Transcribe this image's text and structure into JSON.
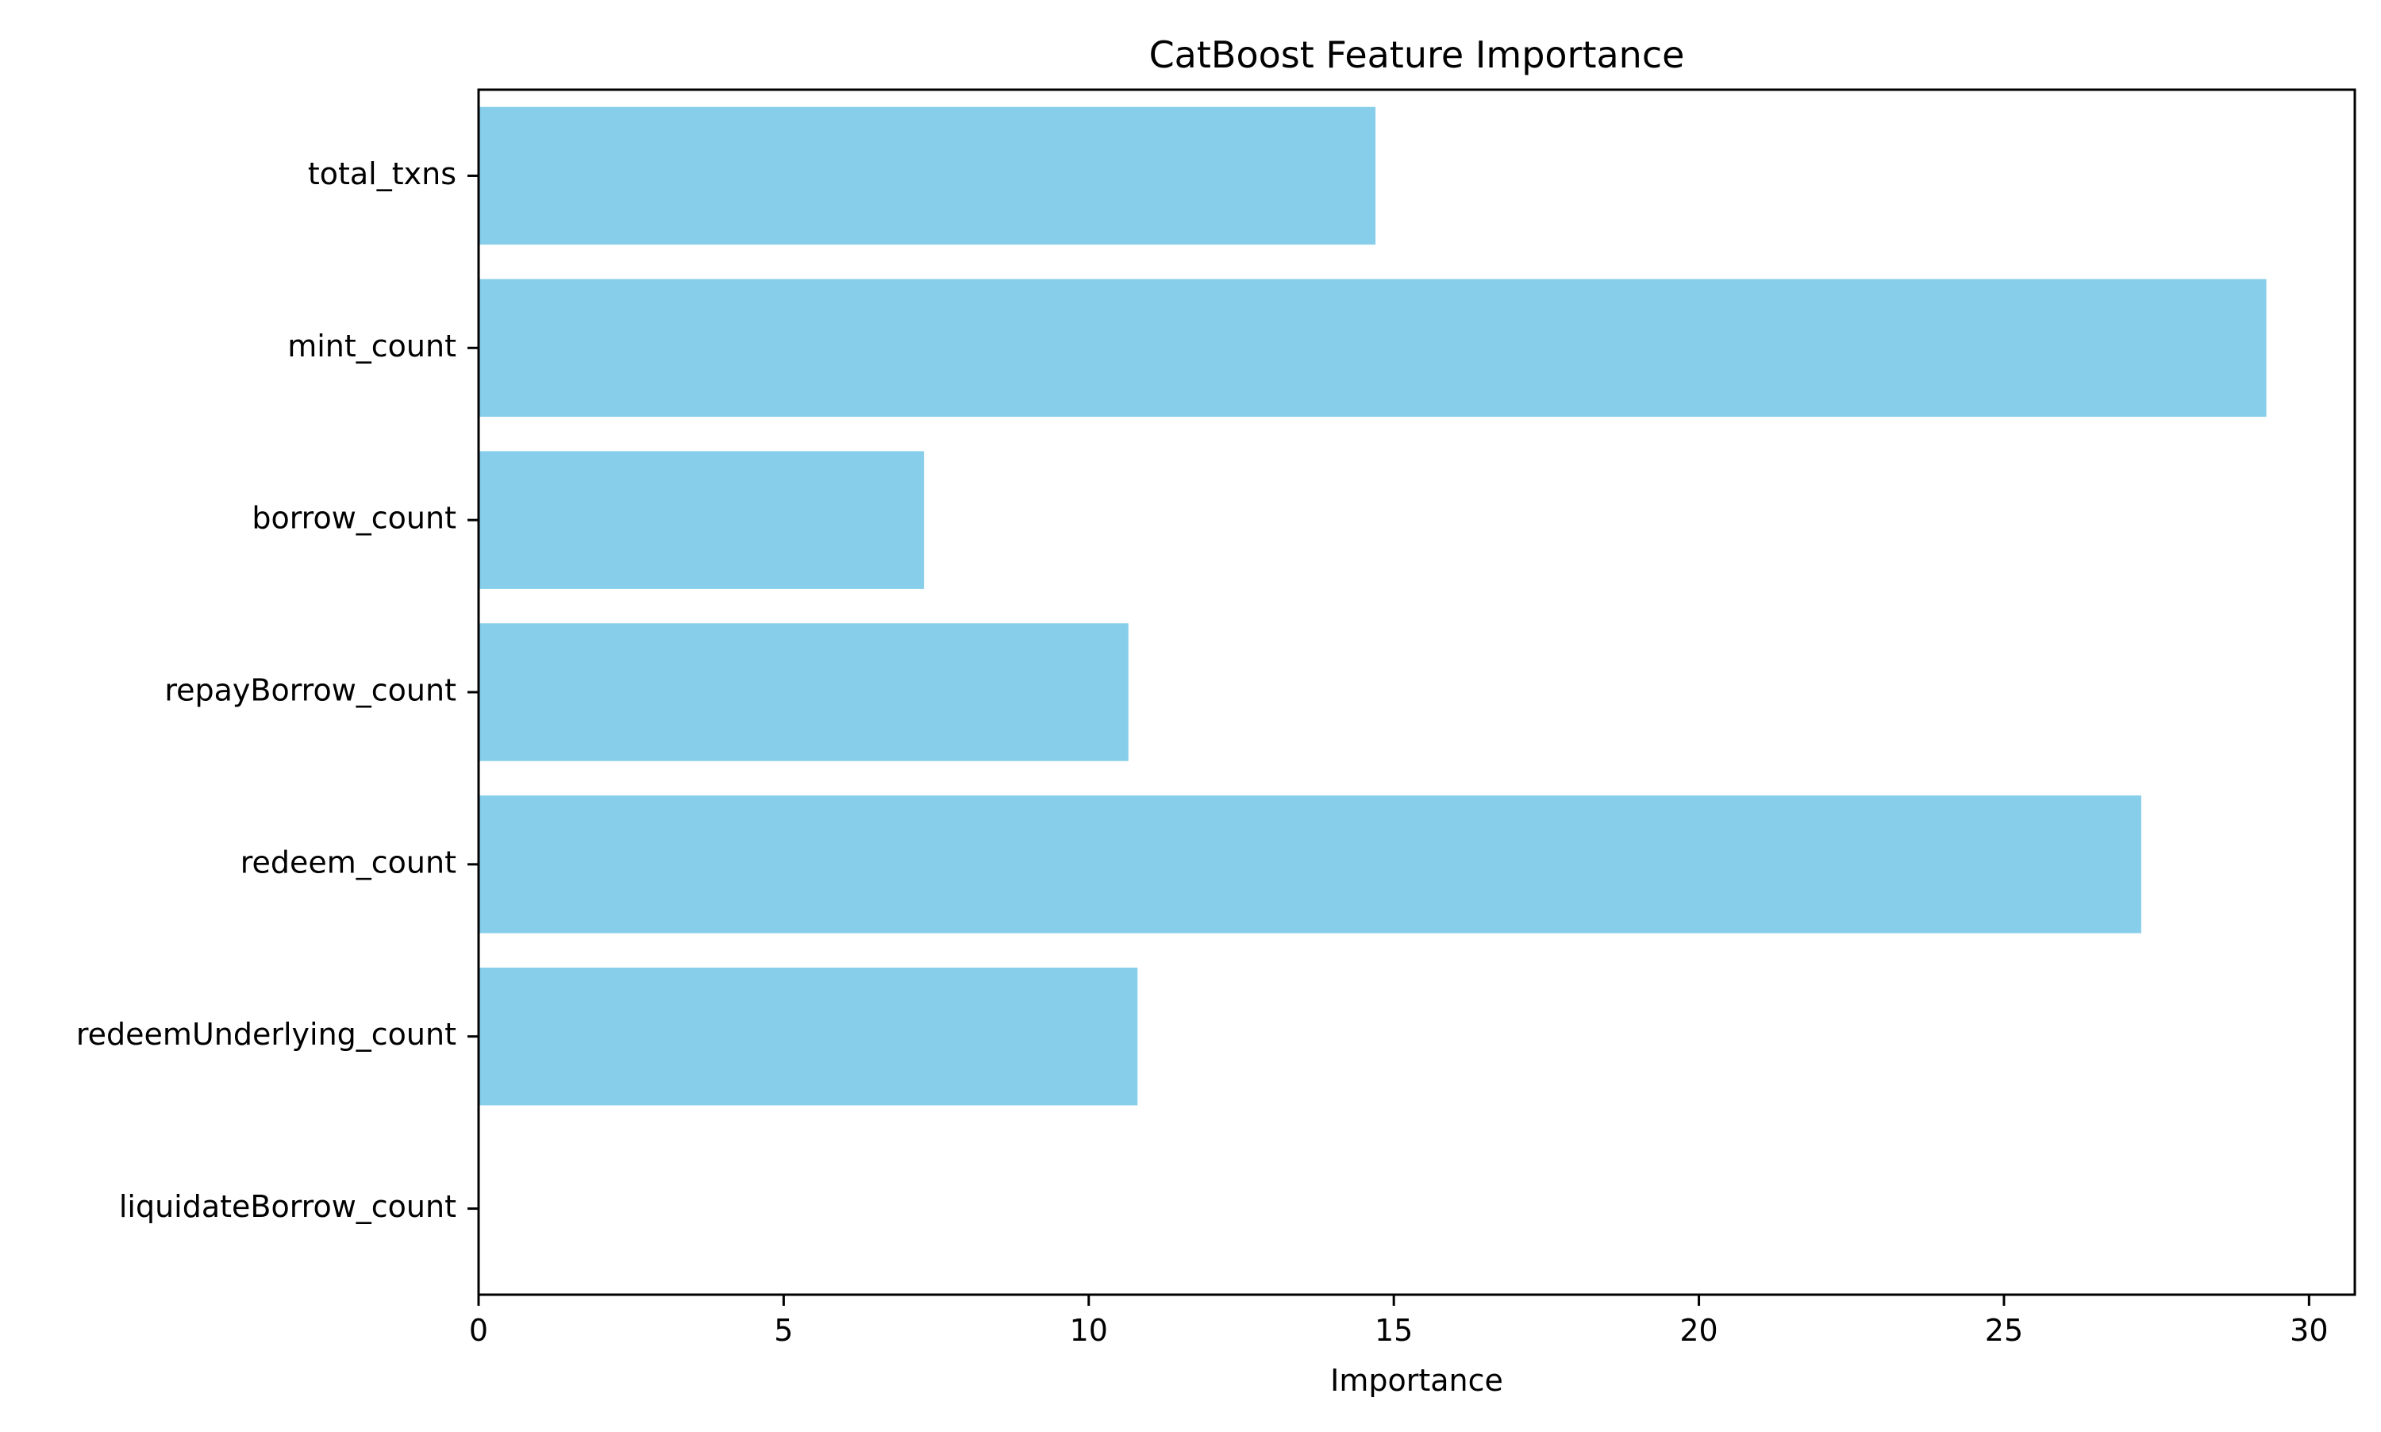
{
  "chart_data": {
    "type": "bar",
    "orientation": "horizontal",
    "title": "CatBoost Feature Importance",
    "xlabel": "Importance",
    "ylabel": "",
    "categories": [
      "total_txns",
      "mint_count",
      "borrow_count",
      "repayBorrow_count",
      "redeem_count",
      "redeemUnderlying_count",
      "liquidateBorrow_count"
    ],
    "values": [
      14.7,
      29.3,
      7.3,
      10.65,
      27.25,
      10.8,
      0
    ],
    "xlim": [
      0,
      30.75
    ],
    "xticks": [
      0,
      5,
      10,
      15,
      20,
      25,
      30
    ],
    "xtick_labels": [
      "0",
      "5",
      "10",
      "15",
      "20",
      "25",
      "30"
    ],
    "grid": false,
    "legend": "none",
    "bar_color": "#87CEEB"
  }
}
